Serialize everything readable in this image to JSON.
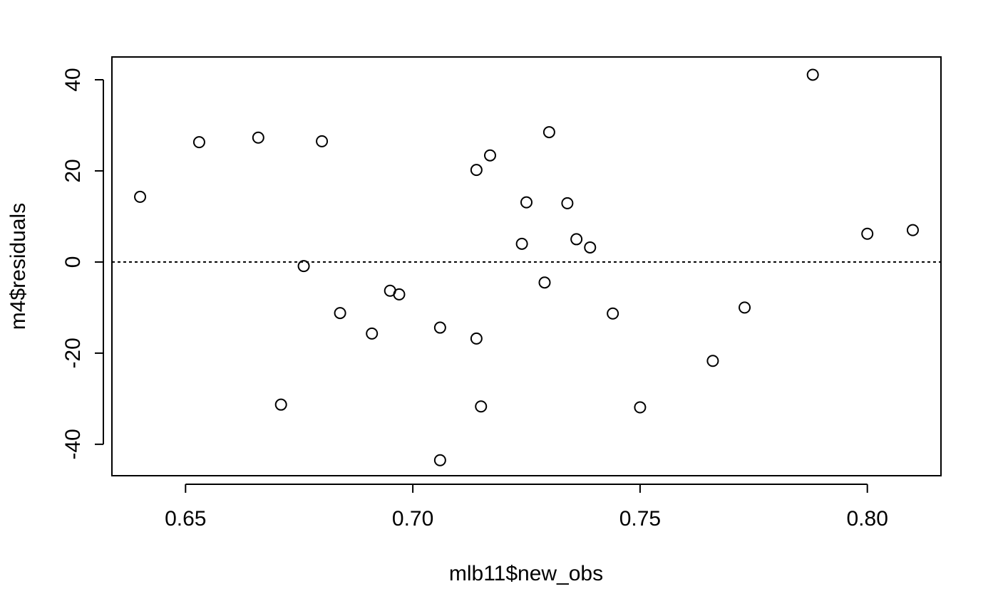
{
  "chart_data": {
    "type": "scatter",
    "title": "",
    "xlabel": "mlb11$new_obs",
    "ylabel": "m4$residuals",
    "xlim": [
      0.6338,
      0.8162
    ],
    "ylim": [
      -46.9,
      45.0
    ],
    "xticks": [
      0.65,
      0.7,
      0.75,
      0.8
    ],
    "xtick_labels": [
      "0.65",
      "0.70",
      "0.75",
      "0.80"
    ],
    "yticks": [
      -40,
      -20,
      0,
      20,
      40
    ],
    "ytick_labels": [
      "-40",
      "-20",
      "0",
      "20",
      "40"
    ],
    "grid": false,
    "legend": "none",
    "reference_line": {
      "y": 0,
      "style": "dotted"
    },
    "marker": "open-circle",
    "colors": {
      "points": "#000000",
      "frame": "#000000",
      "background": "#ffffff"
    },
    "points": [
      {
        "x": 0.64,
        "y": 14.3
      },
      {
        "x": 0.653,
        "y": 26.3
      },
      {
        "x": 0.666,
        "y": 27.3
      },
      {
        "x": 0.671,
        "y": -31.3
      },
      {
        "x": 0.676,
        "y": -0.9
      },
      {
        "x": 0.68,
        "y": 26.5
      },
      {
        "x": 0.684,
        "y": -11.2
      },
      {
        "x": 0.691,
        "y": -15.7
      },
      {
        "x": 0.695,
        "y": -6.3
      },
      {
        "x": 0.697,
        "y": -7.1
      },
      {
        "x": 0.706,
        "y": -14.4
      },
      {
        "x": 0.706,
        "y": -43.5
      },
      {
        "x": 0.714,
        "y": 20.2
      },
      {
        "x": 0.714,
        "y": -16.8
      },
      {
        "x": 0.715,
        "y": -31.7
      },
      {
        "x": 0.717,
        "y": 23.4
      },
      {
        "x": 0.724,
        "y": 4.0
      },
      {
        "x": 0.725,
        "y": 13.1
      },
      {
        "x": 0.729,
        "y": -4.5
      },
      {
        "x": 0.73,
        "y": 28.5
      },
      {
        "x": 0.734,
        "y": 12.9
      },
      {
        "x": 0.736,
        "y": 5.0
      },
      {
        "x": 0.739,
        "y": 3.2
      },
      {
        "x": 0.744,
        "y": -11.3
      },
      {
        "x": 0.75,
        "y": -31.9
      },
      {
        "x": 0.766,
        "y": -21.7
      },
      {
        "x": 0.773,
        "y": -10.0
      },
      {
        "x": 0.788,
        "y": 41.1
      },
      {
        "x": 0.8,
        "y": 6.2
      },
      {
        "x": 0.81,
        "y": 7.0
      }
    ]
  }
}
